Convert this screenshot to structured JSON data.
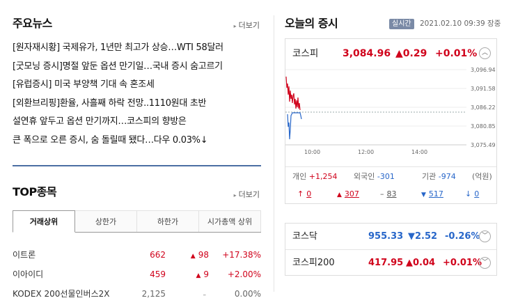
{
  "news": {
    "title": "주요뉴스",
    "more": "더보기",
    "items": [
      "[원자재시황] 국제유가, 1년만 최고가 상승…WTI 58달러",
      "[굿모닝 증시]명절 앞둔 옵션 만기일…국내 증시 숨고르기",
      "[유럽증시] 미국 부양책 기대 속 혼조세",
      "[외환브리핑]환율, 사흘째 하락 전망..1110원대 초반",
      "설연휴 앞두고 옵션 만기까지…코스피의 향방은",
      "큰 폭으로 오른 증시, 숨 돌릴때 됐다…다우 0.03%↓"
    ]
  },
  "top": {
    "title": "TOP종목",
    "more": "더보기",
    "tabs": [
      "거래상위",
      "상한가",
      "하한가",
      "시가총액 상위"
    ],
    "rows": [
      {
        "name": "이트론",
        "price": "662",
        "chg": "98",
        "rate": "+17.38%",
        "dir": "up"
      },
      {
        "name": "이아이디",
        "price": "459",
        "chg": "9",
        "rate": "+2.00%",
        "dir": "up"
      },
      {
        "name": "KODEX 200선물인버스2X",
        "price": "2,125",
        "chg": "0",
        "rate": "0.00%",
        "dir": "flat"
      }
    ]
  },
  "market": {
    "title": "오늘의 증시",
    "live": "실시간",
    "datetime": "2021.02.10 09:39 장중",
    "kospi": {
      "name": "코스피",
      "value": "3,084.96",
      "change": "▲0.29",
      "rate": "+0.01%"
    },
    "chart_labels": {
      "y": [
        "3,096.94",
        "3,091.58",
        "3,086.22",
        "3,080.85",
        "3,075.49"
      ],
      "x": [
        "10:00",
        "12:00",
        "14:00"
      ]
    },
    "investors": {
      "individual_label": "개인",
      "individual_value": "+1,254",
      "foreign_label": "외국인",
      "foreign_value": "-301",
      "inst_label": "기관",
      "inst_value": "-974",
      "unit": "(억원)"
    },
    "breadth": {
      "upper": "0",
      "up": "307",
      "flat": "83",
      "down": "517",
      "lower": "0"
    },
    "kosdaq": {
      "name": "코스닥",
      "value": "955.33",
      "change": "▼2.52",
      "rate": "-0.26%"
    },
    "kospi200": {
      "name": "코스피200",
      "value": "417.95",
      "change": "▲0.04",
      "rate": "+0.01%"
    }
  }
}
